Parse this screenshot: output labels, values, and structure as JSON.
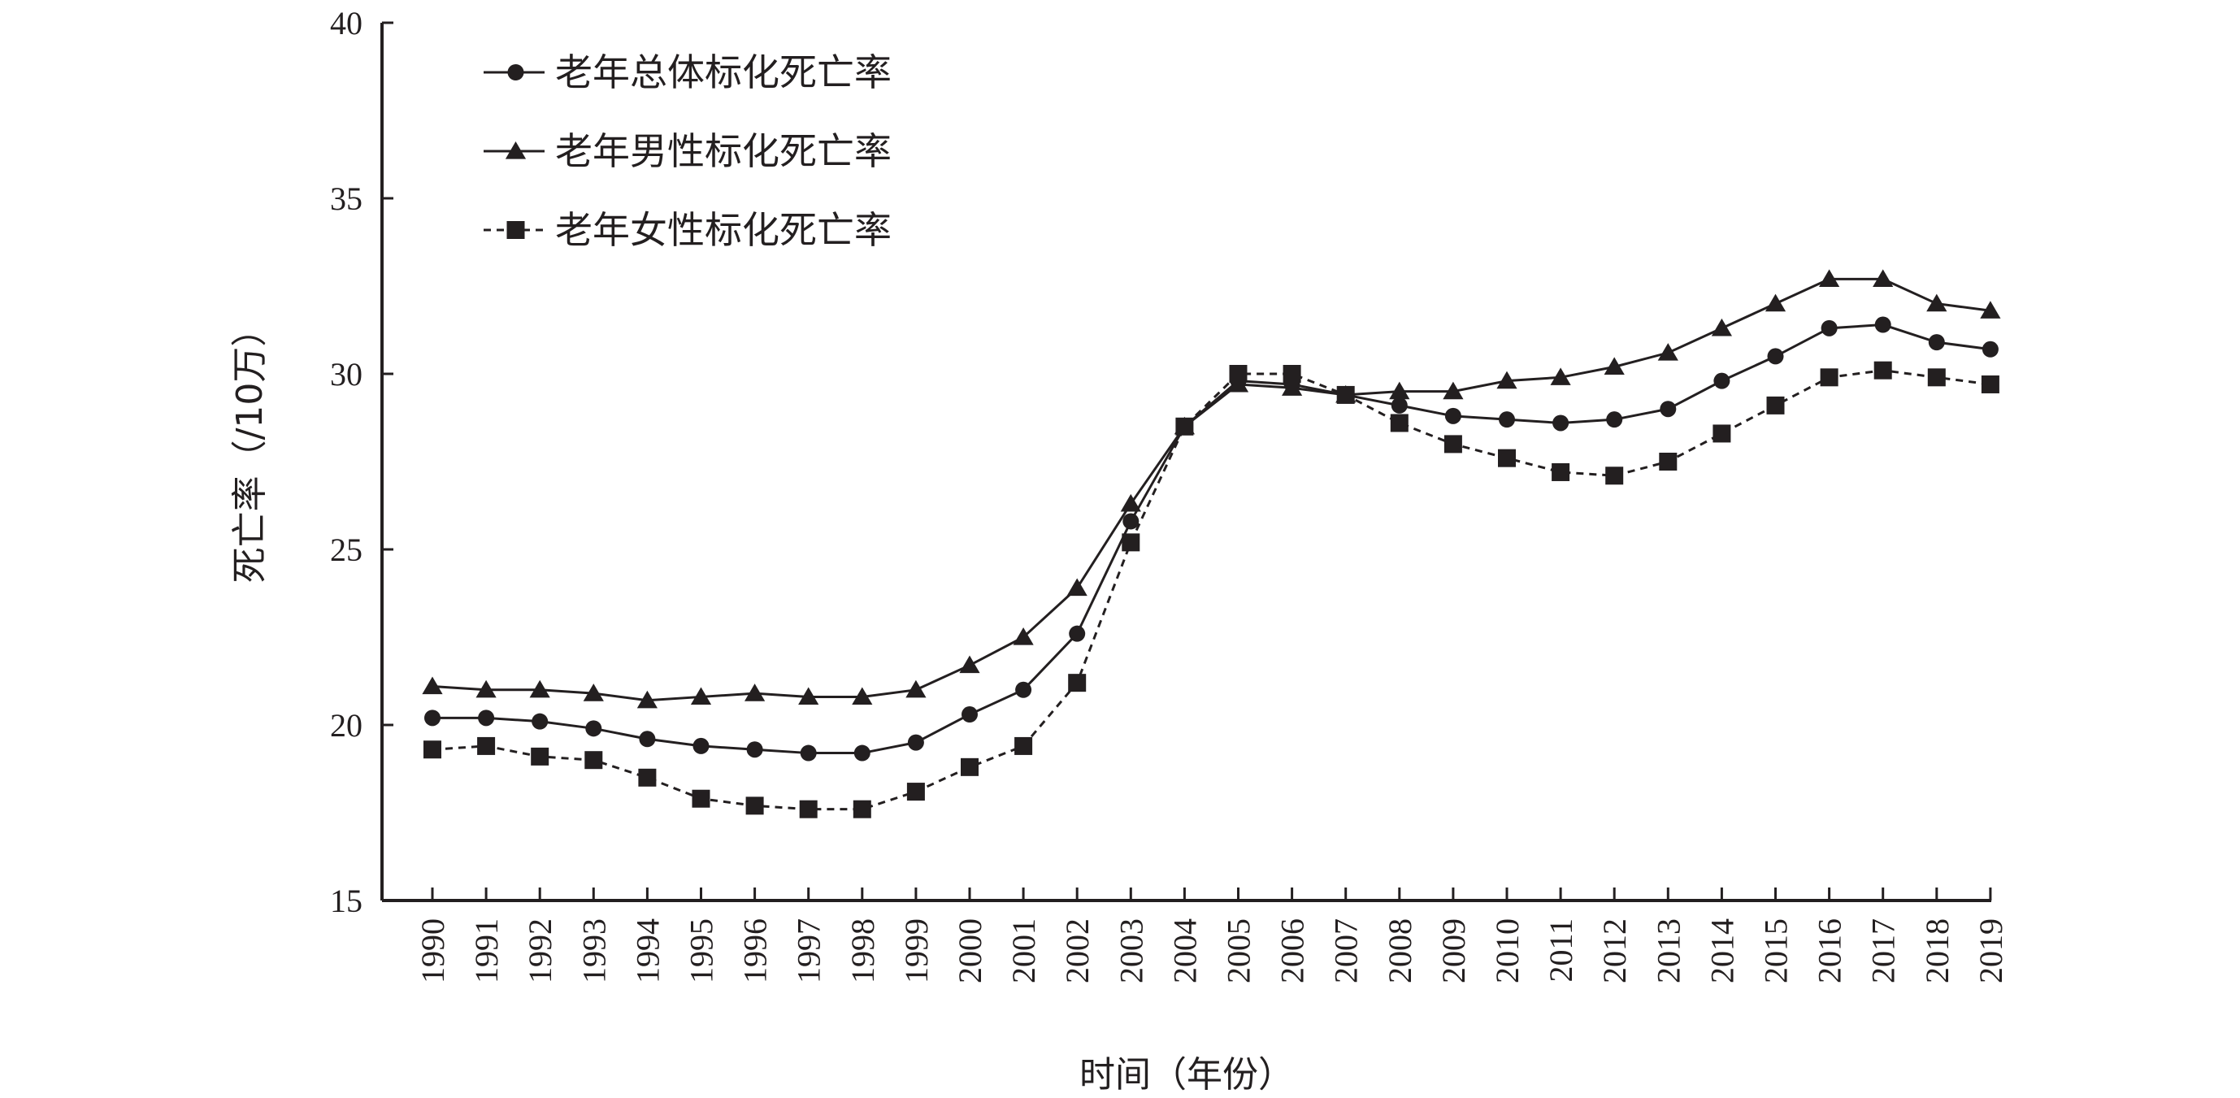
{
  "chart_data": {
    "type": "line",
    "xlabel": "时间（年份）",
    "ylabel": "死亡率（/10万）",
    "ylim": [
      15,
      40
    ],
    "yticks": [
      15,
      20,
      25,
      30,
      35,
      40
    ],
    "x": [
      "1990",
      "1991",
      "1992",
      "1993",
      "1994",
      "1995",
      "1996",
      "1997",
      "1998",
      "1999",
      "2000",
      "2001",
      "2002",
      "2003",
      "2004",
      "2005",
      "2006",
      "2007",
      "2008",
      "2009",
      "2010",
      "2011",
      "2012",
      "2013",
      "2014",
      "2015",
      "2016",
      "2017",
      "2018",
      "2019"
    ],
    "legend_position": "top-left",
    "grid": false,
    "series": [
      {
        "name": "老年总体标化死亡率",
        "marker": "circle",
        "line_style": "solid",
        "values": [
          20.2,
          20.2,
          20.1,
          19.9,
          19.6,
          19.4,
          19.3,
          19.2,
          19.2,
          19.5,
          20.3,
          21.0,
          22.6,
          25.8,
          28.5,
          29.8,
          29.7,
          29.4,
          29.1,
          28.8,
          28.7,
          28.6,
          28.7,
          29.0,
          29.8,
          30.5,
          31.3,
          31.4,
          30.9,
          30.7
        ]
      },
      {
        "name": "老年男性标化死亡率",
        "marker": "triangle",
        "line_style": "solid",
        "values": [
          21.1,
          21.0,
          21.0,
          20.9,
          20.7,
          20.8,
          20.9,
          20.8,
          20.8,
          21.0,
          21.7,
          22.5,
          23.9,
          26.3,
          28.5,
          29.7,
          29.6,
          29.4,
          29.5,
          29.5,
          29.8,
          29.9,
          30.2,
          30.6,
          31.3,
          32.0,
          32.7,
          32.7,
          32.0,
          31.8
        ]
      },
      {
        "name": "老年女性标化死亡率",
        "marker": "square",
        "line_style": "dashed",
        "values": [
          19.3,
          19.4,
          19.1,
          19.0,
          18.5,
          17.9,
          17.7,
          17.6,
          17.6,
          18.1,
          18.8,
          19.4,
          21.2,
          25.2,
          28.5,
          30.0,
          30.0,
          29.4,
          28.6,
          28.0,
          27.6,
          27.2,
          27.1,
          27.5,
          28.3,
          29.1,
          29.9,
          30.1,
          29.9,
          29.7
        ]
      }
    ],
    "colors": {
      "ink": "#231f20",
      "background": "#ffffff"
    }
  }
}
